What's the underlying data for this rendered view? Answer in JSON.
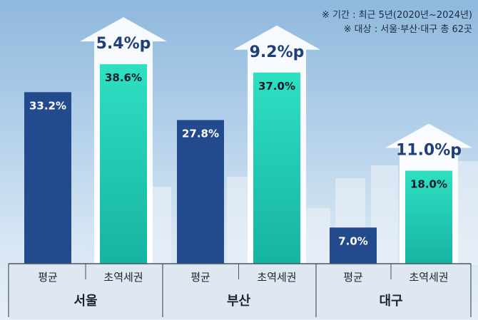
{
  "notes": [
    "※ 기간 : 최근 5년(2020년~2024년)",
    "※ 대상 : 서울·부산·대구 총 62곳"
  ],
  "colors": {
    "avg": "#234a8c",
    "station": "#1fc7b0",
    "diff": "#1f3f7a",
    "arrow": "#ffffff"
  },
  "chart_data": {
    "type": "bar",
    "title": "",
    "xlabel": "",
    "ylabel": "",
    "ylim": [
      0,
      45
    ],
    "groups": [
      {
        "region": "서울",
        "bars": [
          {
            "category": "평균",
            "value": 33.2,
            "label": "33.2%"
          },
          {
            "category": "초역세권",
            "value": 38.6,
            "label": "38.6%"
          }
        ],
        "diff": "5.4%p"
      },
      {
        "region": "부산",
        "bars": [
          {
            "category": "평균",
            "value": 27.8,
            "label": "27.8%"
          },
          {
            "category": "초역세권",
            "value": 37.0,
            "label": "37.0%"
          }
        ],
        "diff": "9.2%p"
      },
      {
        "region": "대구",
        "bars": [
          {
            "category": "평균",
            "value": 7.0,
            "label": "7.0%"
          },
          {
            "category": "초역세권",
            "value": 18.0,
            "label": "18.0%"
          }
        ],
        "diff": "11.0%p"
      }
    ]
  }
}
